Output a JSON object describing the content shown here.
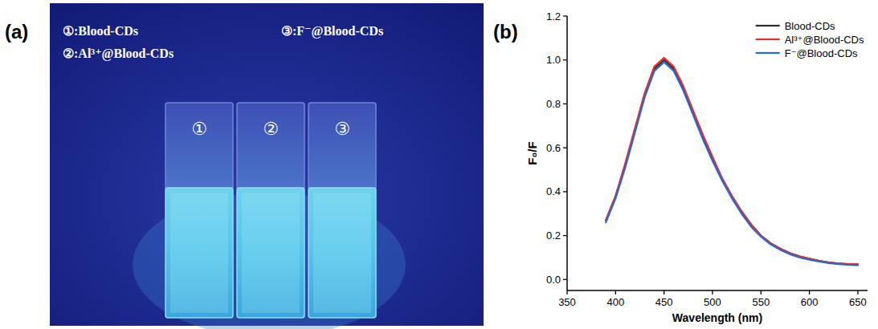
{
  "figure": {
    "panel_labels": [
      "(a)",
      "(b)"
    ],
    "photo": {
      "captions": [
        "①:Blood-CDs",
        "②:Al³⁺@Blood-CDs",
        "③:F⁻@Blood-CDs"
      ],
      "cuvette_numbers": [
        "①",
        "②",
        "③"
      ]
    }
  },
  "chart_data": {
    "type": "line",
    "x_label": "Wavelength (nm)",
    "y_label": "F₀/F",
    "x": [
      390,
      400,
      410,
      420,
      430,
      440,
      450,
      460,
      470,
      480,
      490,
      500,
      510,
      520,
      530,
      540,
      550,
      560,
      570,
      580,
      590,
      600,
      610,
      620,
      630,
      640,
      650
    ],
    "series": [
      {
        "name": "Blood-CDs",
        "color": "#2b2b2b",
        "values": [
          0.27,
          0.38,
          0.52,
          0.68,
          0.84,
          0.96,
          1.0,
          0.96,
          0.87,
          0.76,
          0.65,
          0.55,
          0.46,
          0.38,
          0.31,
          0.25,
          0.2,
          0.165,
          0.14,
          0.12,
          0.105,
          0.095,
          0.085,
          0.078,
          0.073,
          0.07,
          0.068
        ]
      },
      {
        "name": "Al³⁺@Blood-CDs",
        "color": "#e8302c",
        "values": [
          0.27,
          0.38,
          0.53,
          0.69,
          0.85,
          0.97,
          1.01,
          0.97,
          0.88,
          0.77,
          0.66,
          0.56,
          0.46,
          0.38,
          0.31,
          0.25,
          0.2,
          0.165,
          0.14,
          0.12,
          0.105,
          0.095,
          0.085,
          0.078,
          0.073,
          0.07,
          0.07
        ]
      },
      {
        "name": "F⁻@Blood-CDs",
        "color": "#2469d8",
        "values": [
          0.26,
          0.37,
          0.51,
          0.67,
          0.83,
          0.95,
          0.99,
          0.95,
          0.86,
          0.75,
          0.64,
          0.54,
          0.45,
          0.37,
          0.3,
          0.24,
          0.195,
          0.16,
          0.135,
          0.115,
          0.1,
          0.09,
          0.082,
          0.075,
          0.07,
          0.067,
          0.065
        ]
      }
    ],
    "xlim": [
      350,
      660
    ],
    "xticks": [
      350,
      400,
      450,
      500,
      550,
      600,
      650
    ],
    "ylim": [
      -0.05,
      1.2
    ],
    "yticks": [
      {
        "value": 0,
        "label": "0.0"
      },
      0.2,
      0.4,
      0.6,
      0.8,
      {
        "value": 1,
        "label": "1.0"
      },
      1.2
    ],
    "grid": false,
    "legend": "upper right"
  }
}
